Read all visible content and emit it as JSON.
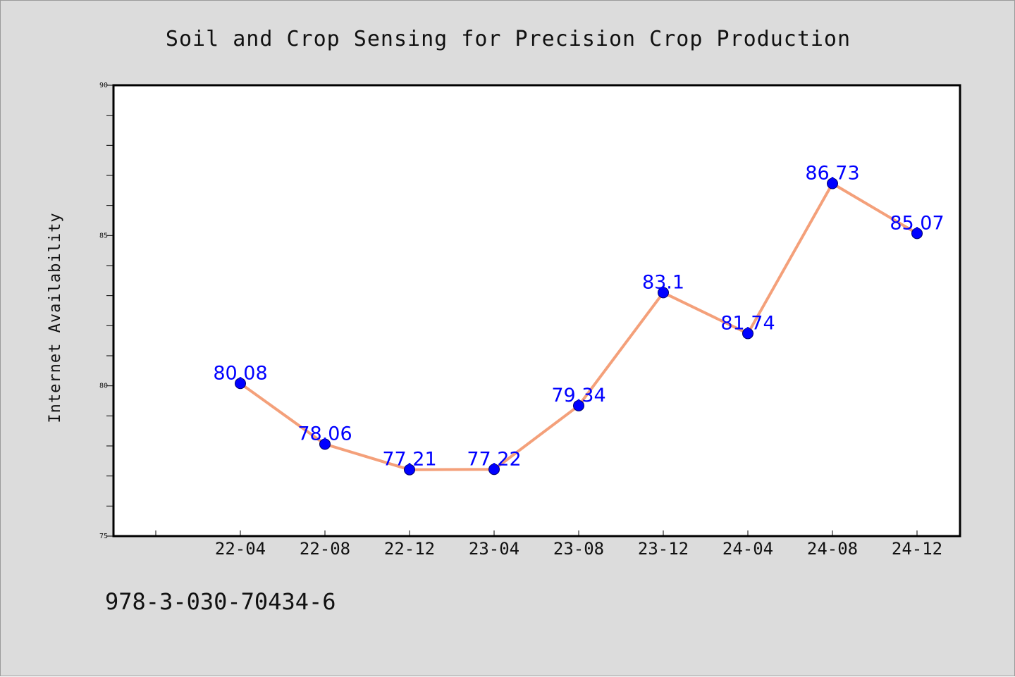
{
  "chart_data": {
    "type": "line",
    "title": "Soil and Crop Sensing for Precision Crop Production",
    "xlabel": "",
    "ylabel": "Internet Availability",
    "categories": [
      "22-04",
      "22-08",
      "22-12",
      "23-04",
      "23-08",
      "23-12",
      "24-04",
      "24-08",
      "24-12"
    ],
    "series": [
      {
        "values": [
          80.08,
          78.06,
          77.21,
          77.22,
          79.34,
          83.1,
          81.74,
          86.73,
          85.07
        ]
      }
    ],
    "data_labels": [
      "80.08",
      "78.06",
      "77.21",
      "77.22",
      "79.34",
      "83.1",
      "81.74",
      "86.73",
      "85.07"
    ],
    "ylim": [
      75,
      90
    ],
    "yticks": [
      "75",
      "80",
      "85",
      "90"
    ],
    "grid": false,
    "colors": {
      "line": "#f4a07a",
      "marker": "#0000ff",
      "label": "#0000ff",
      "background": "#dcdcdc",
      "plot_background": "#ffffff"
    }
  },
  "footer_text": "978-3-030-70434-6"
}
